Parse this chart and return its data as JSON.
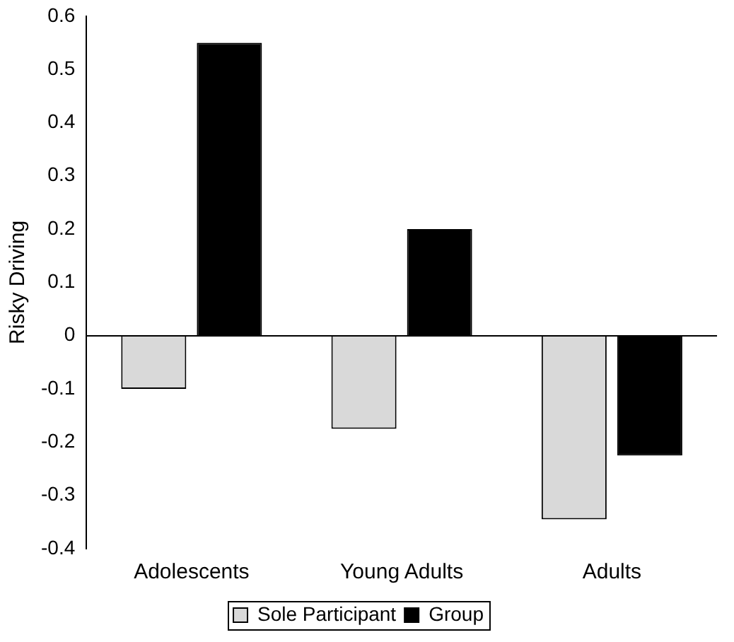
{
  "chart_data": {
    "type": "bar",
    "ylabel": "Risky Driving",
    "categories": [
      "Adolescents",
      "Young Adults",
      "Adults"
    ],
    "series": [
      {
        "name": "Sole Participant",
        "color": "#d9d9d9",
        "values": [
          -0.1,
          -0.175,
          -0.345
        ]
      },
      {
        "name": "Group",
        "color": "#000000",
        "values": [
          0.55,
          0.2,
          -0.225
        ]
      }
    ],
    "ylim": [
      -0.4,
      0.6
    ],
    "yticks": [
      -0.4,
      -0.3,
      -0.2,
      -0.1,
      0,
      0.1,
      0.2,
      0.3,
      0.4,
      0.5,
      0.6
    ],
    "ref_lines": [
      {
        "axis": "y",
        "value": 0,
        "color": "#000000"
      }
    ],
    "grid": false,
    "legend": "bottom"
  }
}
